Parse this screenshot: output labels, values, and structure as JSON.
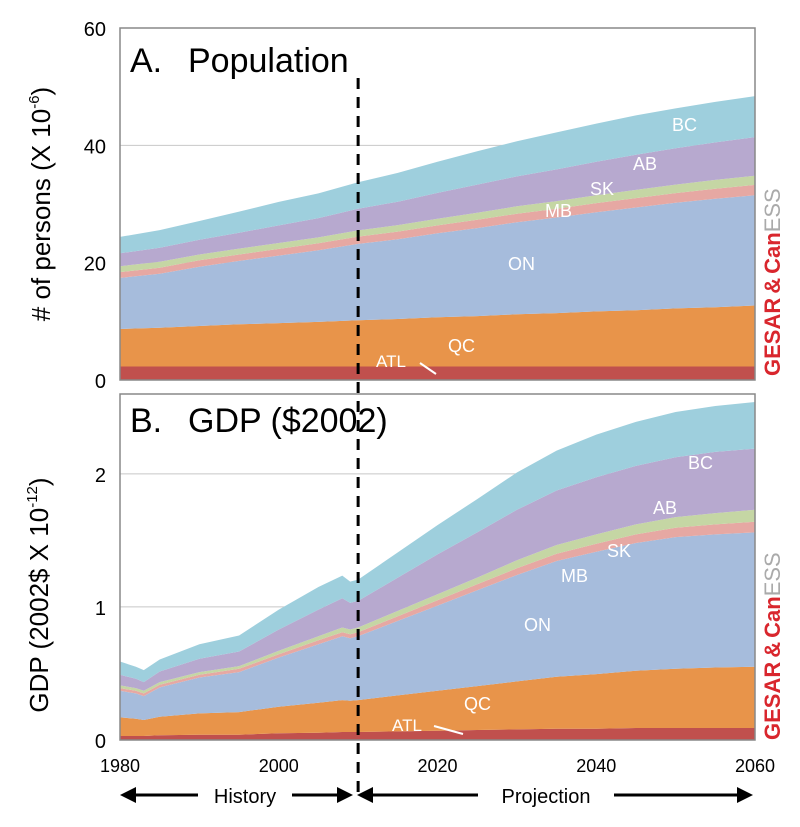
{
  "chart_data": [
    {
      "type": "area",
      "stacked": true,
      "title_letter": "A.",
      "title": "Population",
      "ylabel_main": "# of persons (X 10",
      "ylabel_exp": "-6",
      "ylabel_close": ")",
      "ylim": [
        0,
        60
      ],
      "yticks": [
        "0",
        "20",
        "40",
        "60"
      ],
      "grid": true,
      "x": [
        1980,
        1985,
        1990,
        1995,
        2000,
        2005,
        2010,
        2015,
        2020,
        2025,
        2030,
        2035,
        2040,
        2045,
        2050,
        2055,
        2060
      ],
      "series": [
        {
          "name": "ATL",
          "color": "#c0504d",
          "values": [
            2.3,
            2.3,
            2.3,
            2.3,
            2.3,
            2.3,
            2.3,
            2.3,
            2.3,
            2.3,
            2.3,
            2.3,
            2.3,
            2.3,
            2.3,
            2.3,
            2.3
          ]
        },
        {
          "name": "QC",
          "color": "#e8944a",
          "values": [
            6.4,
            6.6,
            6.9,
            7.2,
            7.4,
            7.6,
            7.9,
            8.1,
            8.4,
            8.6,
            8.9,
            9.1,
            9.4,
            9.6,
            9.9,
            10.1,
            10.4
          ]
        },
        {
          "name": "ON",
          "color": "#a6bcdc",
          "values": [
            8.7,
            9.2,
            10.1,
            10.8,
            11.5,
            12.2,
            13.0,
            13.6,
            14.3,
            15.0,
            15.7,
            16.3,
            16.9,
            17.5,
            18.0,
            18.5,
            18.8
          ]
        },
        {
          "name": "MB",
          "color": "#e6a8a3",
          "values": [
            1.0,
            1.05,
            1.1,
            1.1,
            1.15,
            1.2,
            1.25,
            1.3,
            1.35,
            1.4,
            1.45,
            1.5,
            1.55,
            1.6,
            1.65,
            1.7,
            1.75
          ]
        },
        {
          "name": "SK",
          "color": "#c5d6a4",
          "values": [
            1.0,
            1.0,
            1.0,
            1.0,
            1.0,
            1.0,
            1.05,
            1.1,
            1.15,
            1.2,
            1.25,
            1.3,
            1.35,
            1.4,
            1.45,
            1.5,
            1.55
          ]
        },
        {
          "name": "AB",
          "color": "#b7a9cf",
          "values": [
            2.2,
            2.4,
            2.5,
            2.7,
            3.0,
            3.3,
            3.7,
            4.0,
            4.4,
            4.8,
            5.1,
            5.4,
            5.7,
            6.0,
            6.2,
            6.4,
            6.6
          ]
        },
        {
          "name": "BC",
          "color": "#9ecfdd",
          "values": [
            2.8,
            3.0,
            3.2,
            3.6,
            4.0,
            4.2,
            4.5,
            4.9,
            5.3,
            5.7,
            6.0,
            6.3,
            6.5,
            6.7,
            6.8,
            6.9,
            7.0
          ]
        }
      ],
      "series_labels": [
        "BC",
        "AB",
        "SK",
        "MB",
        "ON",
        "QC",
        "ATL"
      ]
    },
    {
      "type": "area",
      "stacked": true,
      "title_letter": "B.",
      "title": "GDP ($2002)",
      "ylabel_main": "GDP (2002$ X 10",
      "ylabel_exp": "-12",
      "ylabel_close": ")",
      "ylim": [
        0,
        2.6
      ],
      "yticks": [
        "0",
        "1",
        "2"
      ],
      "grid": true,
      "x": [
        1980,
        1982,
        1983,
        1985,
        1990,
        1995,
        2000,
        2005,
        2008,
        2009,
        2010,
        2015,
        2020,
        2025,
        2030,
        2035,
        2040,
        2045,
        2050,
        2055,
        2060
      ],
      "series": [
        {
          "name": "ATL",
          "color": "#c0504d",
          "values": [
            0.03,
            0.03,
            0.03,
            0.035,
            0.04,
            0.04,
            0.05,
            0.055,
            0.06,
            0.06,
            0.06,
            0.065,
            0.07,
            0.075,
            0.08,
            0.085,
            0.085,
            0.09,
            0.09,
            0.09,
            0.09
          ]
        },
        {
          "name": "QC",
          "color": "#e8944a",
          "values": [
            0.14,
            0.13,
            0.12,
            0.14,
            0.16,
            0.17,
            0.2,
            0.225,
            0.24,
            0.235,
            0.24,
            0.27,
            0.3,
            0.33,
            0.36,
            0.39,
            0.41,
            0.43,
            0.445,
            0.455,
            0.46
          ]
        },
        {
          "name": "ON",
          "color": "#a6bcdc",
          "values": [
            0.2,
            0.19,
            0.18,
            0.22,
            0.27,
            0.3,
            0.37,
            0.44,
            0.48,
            0.47,
            0.48,
            0.56,
            0.64,
            0.72,
            0.8,
            0.87,
            0.92,
            0.96,
            0.99,
            1.0,
            1.01
          ]
        },
        {
          "name": "MB",
          "color": "#e6a8a3",
          "values": [
            0.02,
            0.02,
            0.02,
            0.02,
            0.02,
            0.025,
            0.025,
            0.03,
            0.03,
            0.03,
            0.03,
            0.035,
            0.04,
            0.045,
            0.05,
            0.055,
            0.06,
            0.065,
            0.07,
            0.075,
            0.08
          ]
        },
        {
          "name": "SK",
          "color": "#c5d6a4",
          "values": [
            0.02,
            0.02,
            0.02,
            0.02,
            0.02,
            0.02,
            0.025,
            0.03,
            0.035,
            0.035,
            0.035,
            0.04,
            0.045,
            0.05,
            0.06,
            0.065,
            0.07,
            0.075,
            0.08,
            0.085,
            0.09
          ]
        },
        {
          "name": "AB",
          "color": "#b7a9cf",
          "values": [
            0.08,
            0.07,
            0.065,
            0.08,
            0.1,
            0.11,
            0.16,
            0.2,
            0.22,
            0.2,
            0.2,
            0.25,
            0.3,
            0.34,
            0.38,
            0.41,
            0.43,
            0.44,
            0.45,
            0.46,
            0.46
          ]
        },
        {
          "name": "BC",
          "color": "#9ecfdd",
          "values": [
            0.1,
            0.09,
            0.09,
            0.09,
            0.11,
            0.12,
            0.15,
            0.17,
            0.17,
            0.16,
            0.16,
            0.19,
            0.22,
            0.25,
            0.28,
            0.3,
            0.32,
            0.33,
            0.34,
            0.345,
            0.35
          ]
        }
      ],
      "series_labels": [
        "BC",
        "AB",
        "SK",
        "MB",
        "ON",
        "QC",
        "ATL"
      ]
    }
  ],
  "xaxis": {
    "ticks": [
      "1980",
      "2000",
      "2020",
      "2040",
      "2060"
    ],
    "tick_values": [
      1980,
      2000,
      2020,
      2040,
      2060
    ],
    "xlim": [
      1980,
      2060
    ],
    "divider_year": 2010
  },
  "annotations": {
    "history": "History",
    "projection": "Projection"
  },
  "logo": {
    "gesar": "GESAR",
    "amp": "&",
    "can": "Can",
    "ess": "ESS",
    "red": "#d9262d",
    "gray": "#aaaaaa"
  }
}
